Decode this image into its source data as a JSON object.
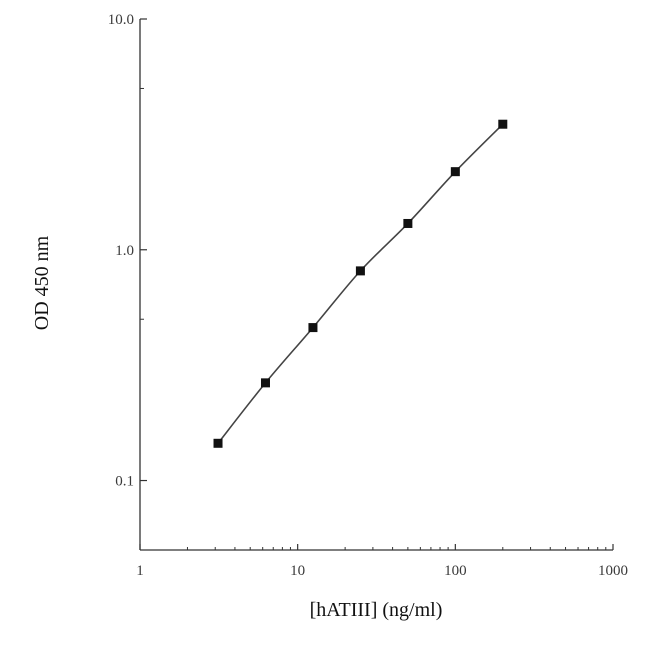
{
  "chart_data": {
    "type": "line",
    "title": "",
    "xlabel": "[hATIII] (ng/ml)",
    "ylabel": "OD 450 nm",
    "xscale": "log",
    "yscale": "log",
    "xlim": [
      1,
      1000
    ],
    "ylim": [
      0.05,
      10
    ],
    "grid": false,
    "legend": "none",
    "x_ticks": [
      {
        "value": 1,
        "label": "1"
      },
      {
        "value": 10,
        "label": "10"
      },
      {
        "value": 100,
        "label": "100"
      },
      {
        "value": 1000,
        "label": "1000"
      }
    ],
    "y_ticks": [
      {
        "value": 0.1,
        "label": "0.1"
      },
      {
        "value": 1,
        "label": "1.0"
      },
      {
        "value": 10,
        "label": "10.0"
      }
    ],
    "series": [
      {
        "x": [
          3.125,
          6.25,
          12.5,
          25,
          50,
          100,
          200
        ],
        "y": [
          0.145,
          0.265,
          0.46,
          0.81,
          1.3,
          2.18,
          3.5
        ],
        "marker": "square",
        "color": "#111111"
      }
    ]
  }
}
